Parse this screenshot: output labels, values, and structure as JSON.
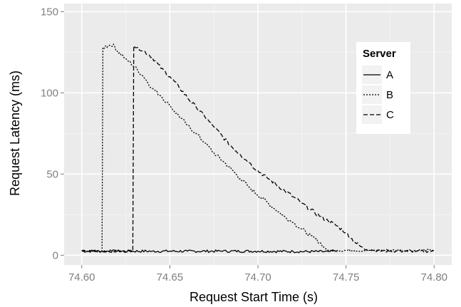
{
  "chart_data": {
    "type": "line",
    "xlabel": "Request Start Time (s)",
    "ylabel": "Request Latency (ms)",
    "xlim": [
      74.59,
      74.81
    ],
    "ylim": [
      -6,
      155
    ],
    "xticks": [
      74.6,
      74.65,
      74.7,
      74.75,
      74.8
    ],
    "xtick_labels": [
      "74.60",
      "74.65",
      "74.70",
      "74.75",
      "74.80"
    ],
    "yticks": [
      0,
      50,
      100,
      150
    ],
    "ytick_labels": [
      "0",
      "50",
      "100",
      "150"
    ],
    "grid": true,
    "background": "#ebebeb",
    "legend": {
      "title": "Server",
      "placement": "right-top-inside",
      "entries": [
        "A",
        "B",
        "C"
      ]
    },
    "series": [
      {
        "name": "A",
        "linestyle": "solid",
        "x": [
          74.6,
          74.62,
          74.64,
          74.66,
          74.68,
          74.7,
          74.72,
          74.74,
          74.745
        ],
        "y": [
          2.5,
          2.5,
          2.5,
          2.5,
          2.5,
          2.5,
          2.3,
          2.2,
          2.5
        ]
      },
      {
        "name": "B",
        "linestyle": "dotted",
        "x": [
          74.6,
          74.6115,
          74.612,
          74.615,
          74.618,
          74.62,
          74.625,
          74.63,
          74.635,
          74.64,
          74.645,
          74.65,
          74.655,
          74.66,
          74.665,
          74.67,
          74.675,
          74.68,
          74.685,
          74.69,
          74.695,
          74.7,
          74.705,
          74.71,
          74.715,
          74.72,
          74.725,
          74.73,
          74.735,
          74.7375,
          74.74,
          74.745,
          74.75,
          74.755,
          74.76,
          74.765,
          74.77,
          74.78,
          74.79,
          74.8
        ],
        "y": [
          2.5,
          2.5,
          128,
          129,
          130,
          126,
          121,
          116,
          110,
          103,
          98,
          92,
          86,
          80,
          75,
          69,
          63,
          58,
          53,
          47,
          42,
          37,
          33,
          28,
          24,
          20,
          16,
          12,
          8,
          5,
          3,
          3,
          3,
          3,
          3,
          3,
          3,
          3,
          3,
          3
        ]
      },
      {
        "name": "C",
        "linestyle": "dashed",
        "x": [
          74.6,
          74.629,
          74.6295,
          74.632,
          74.635,
          74.64,
          74.645,
          74.65,
          74.655,
          74.66,
          74.665,
          74.67,
          74.675,
          74.68,
          74.685,
          74.69,
          74.695,
          74.7,
          74.705,
          74.71,
          74.715,
          74.72,
          74.725,
          74.73,
          74.735,
          74.74,
          74.745,
          74.75,
          74.755,
          74.76,
          74.765,
          74.77,
          74.78,
          74.79,
          74.8
        ],
        "y": [
          2.5,
          2.5,
          129,
          128,
          126,
          122,
          115,
          110,
          104,
          97,
          91,
          85,
          79,
          73,
          67,
          62,
          57,
          52,
          48,
          44,
          40,
          36,
          32,
          28,
          24,
          21,
          18,
          14,
          8,
          4,
          3,
          2.5,
          2.5,
          2.5,
          2.5
        ]
      }
    ]
  }
}
